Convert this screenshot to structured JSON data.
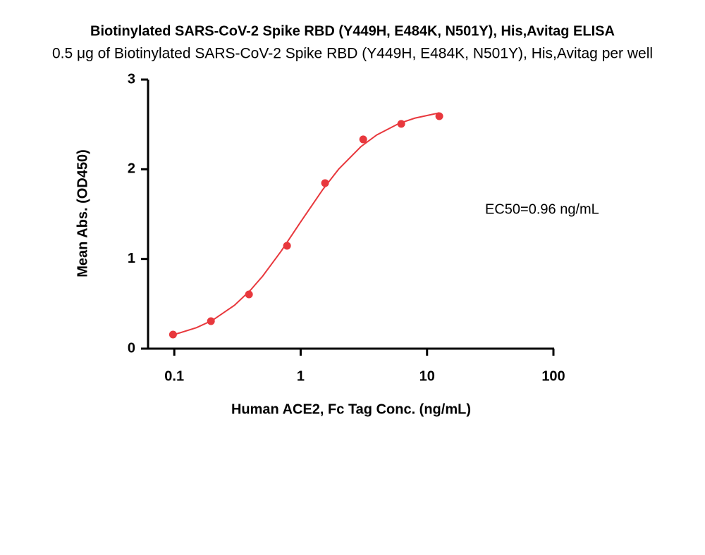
{
  "chart_data": {
    "type": "scatter",
    "title": "Biotinylated SARS-CoV-2 Spike RBD (Y449H, E484K, N501Y), His,Avitag ELISA",
    "subtitle": "0.5 μg of Biotinylated SARS-CoV-2 Spike RBD (Y449H, E484K, N501Y), His,Avitag per well",
    "x_label": "Human ACE2, Fc Tag Conc. (ng/mL)",
    "y_label": "Mean Abs. (OD450)",
    "annotation": "EC50=0.96 ng/mL",
    "x_log": true,
    "color": "#e8383d",
    "x": [
      0.0977,
      0.195,
      0.39,
      0.78,
      1.56,
      3.125,
      6.25,
      12.5
    ],
    "values": [
      0.157,
      0.306,
      0.605,
      1.147,
      1.846,
      2.333,
      2.506,
      2.592
    ],
    "curve": {
      "x": [
        0.1,
        0.15,
        0.2,
        0.3,
        0.4,
        0.5,
        0.7,
        1,
        1.5,
        2,
        3,
        4,
        6,
        8,
        12.5
      ],
      "values": [
        0.157,
        0.234,
        0.315,
        0.484,
        0.651,
        0.808,
        1.086,
        1.413,
        1.776,
        2.002,
        2.253,
        2.383,
        2.511,
        2.57,
        2.629
      ]
    },
    "xlim": [
      0.062,
      100
    ],
    "ylim": [
      0,
      3
    ],
    "xticks": [
      0.1,
      1,
      10,
      100
    ],
    "yticks": [
      0,
      1,
      2,
      3
    ]
  }
}
